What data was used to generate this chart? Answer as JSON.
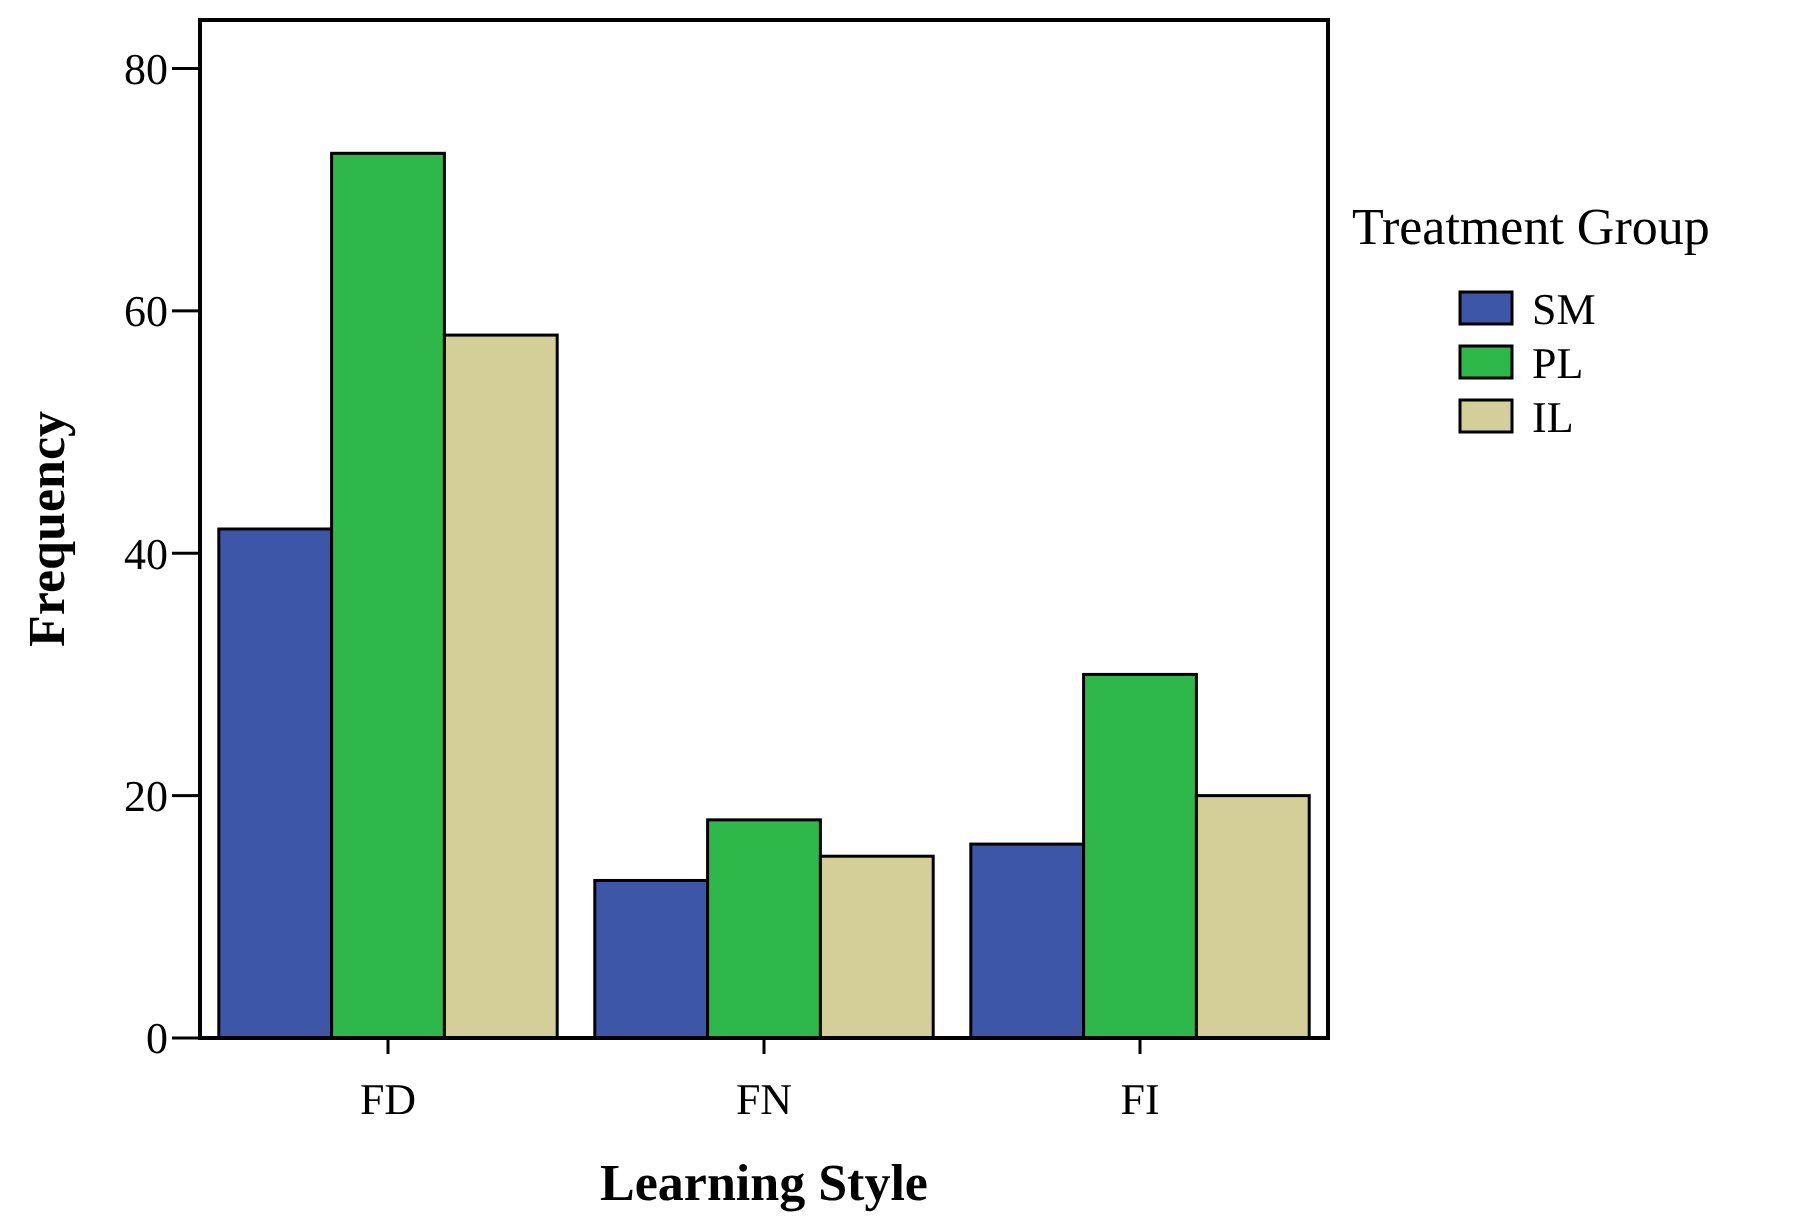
{
  "chart_data": {
    "type": "bar",
    "xlabel": "Learning Style",
    "ylabel": "Frequency",
    "legend_title": "Treatment Group",
    "categories": [
      "FD",
      "FN",
      "FI"
    ],
    "series": [
      {
        "name": "SM",
        "color": "#3d56a8",
        "values": [
          42,
          13,
          16
        ]
      },
      {
        "name": "PL",
        "color": "#2eb84a",
        "values": [
          73,
          18,
          30
        ]
      },
      {
        "name": "IL",
        "color": "#d4cf98",
        "values": [
          58,
          15,
          20
        ]
      }
    ],
    "ylim": [
      0,
      84
    ],
    "yticks": [
      0,
      20,
      40,
      60,
      80
    ],
    "grid": false,
    "legend": "right"
  }
}
